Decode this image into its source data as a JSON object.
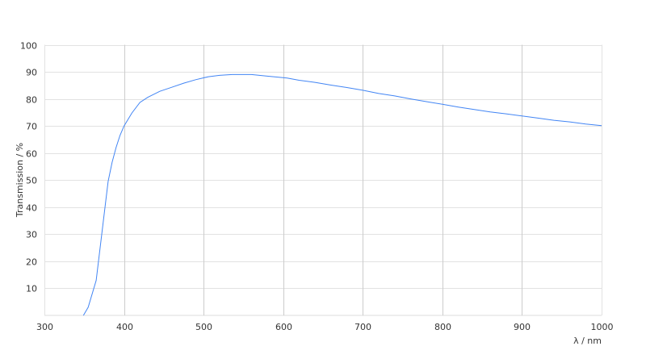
{
  "chart_data": {
    "type": "line",
    "title": "",
    "xlabel": "λ / nm",
    "ylabel": "Transmission / %",
    "xlim": [
      300,
      1000
    ],
    "ylim": [
      0,
      100
    ],
    "xticks": [
      300,
      400,
      500,
      600,
      700,
      800,
      900,
      1000
    ],
    "yticks": [
      10,
      20,
      30,
      40,
      50,
      60,
      70,
      80,
      90,
      100
    ],
    "grid": true,
    "line_color": "#4285f4",
    "series": [
      {
        "x": [
          349,
          355,
          365,
          372,
          380,
          385,
          390,
          395,
          400,
          410,
          420,
          430,
          445,
          460,
          475,
          490,
          506,
          520,
          536,
          560,
          580,
          605,
          620,
          640,
          660,
          680,
          700,
          720,
          740,
          760,
          780,
          800,
          820,
          840,
          860,
          880,
          900,
          920,
          940,
          960,
          980,
          1000
        ],
        "y": [
          0,
          3,
          12.9,
          30,
          49.5,
          56.5,
          62,
          66.5,
          70,
          74.8,
          78.7,
          80.6,
          82.8,
          84.3,
          85.8,
          87.1,
          88.2,
          88.7,
          89,
          89,
          88.4,
          87.7,
          86.9,
          86.1,
          85.1,
          84.2,
          83.2,
          82,
          81.1,
          80,
          79,
          78,
          77,
          76.1,
          75.2,
          74.5,
          73.7,
          72.9,
          72.1,
          71.5,
          70.7,
          70.1
        ]
      }
    ]
  }
}
